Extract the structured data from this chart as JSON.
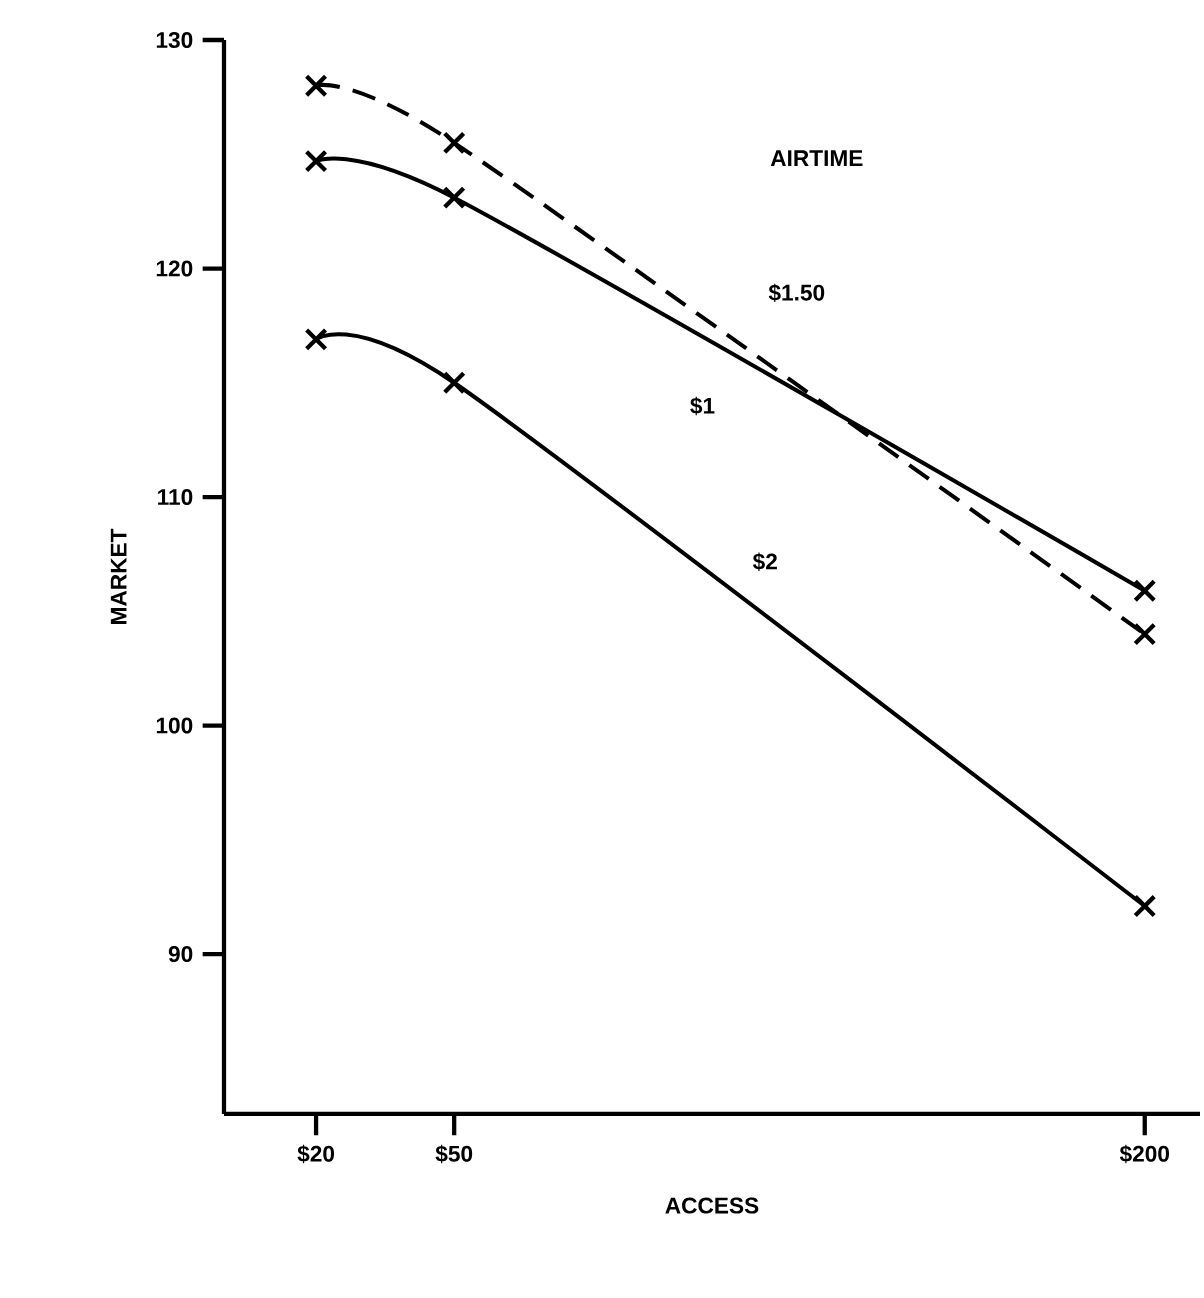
{
  "chart_data": {
    "type": "line",
    "xlabel": "ACCESS",
    "ylabel": "MARKET",
    "annotations": [
      "AIRTIME"
    ],
    "xlim": [
      0,
      212
    ],
    "ylim": [
      83,
      130
    ],
    "xticks": [
      {
        "value": 20,
        "label": "$20"
      },
      {
        "value": 50,
        "label": "$50"
      },
      {
        "value": 200,
        "label": "$200"
      }
    ],
    "yticks": [
      90,
      100,
      110,
      120,
      130
    ],
    "series": [
      {
        "name": "$1.50",
        "color": "#000000",
        "line_style": "dashed",
        "x": [
          20,
          50,
          200
        ],
        "values": [
          128.0,
          125.5,
          104.0
        ]
      },
      {
        "name": "$1",
        "color": "#000000",
        "line_style": "solid",
        "x": [
          20,
          50,
          200
        ],
        "values": [
          124.7,
          123.1,
          105.9
        ]
      },
      {
        "name": "$2",
        "color": "#000000",
        "line_style": "solid",
        "x": [
          20,
          50,
          200
        ],
        "values": [
          116.9,
          115.0,
          92.1
        ]
      }
    ],
    "marker": "cross",
    "grid": false
  }
}
